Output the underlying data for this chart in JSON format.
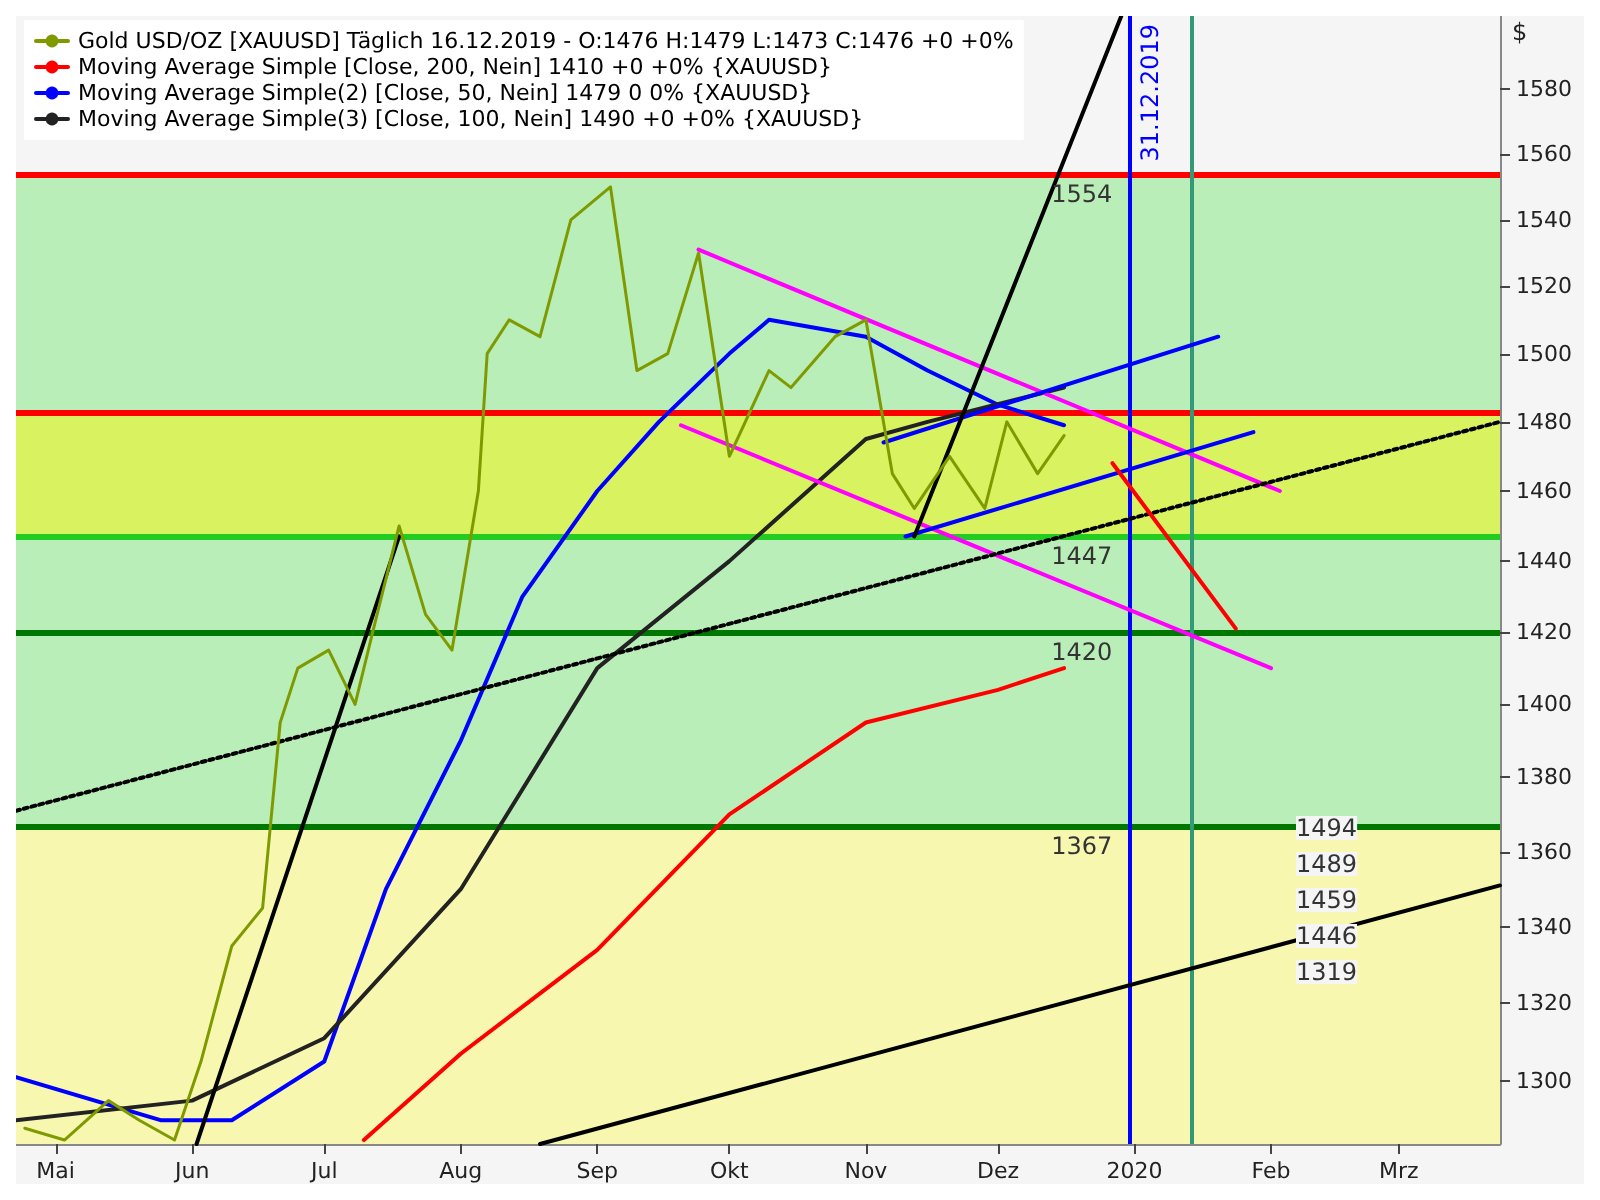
{
  "chart_data": {
    "type": "line",
    "ylabel": "$",
    "log": "y",
    "grid": false,
    "legend": "top left",
    "marker": "none",
    "line_style": "solid",
    "xlim": [
      "2019-04-22",
      "2020-03-24"
    ],
    "xticks": [
      {
        "value": "2019-05-01",
        "label": "Mai"
      },
      {
        "value": "2019-06-01",
        "label": "Jun"
      },
      {
        "value": "2019-07-01",
        "label": "Jul"
      },
      {
        "value": "2019-08-01",
        "label": "Aug"
      },
      {
        "value": "2019-09-01",
        "label": "Sep"
      },
      {
        "value": "2019-10-01",
        "label": "Okt"
      },
      {
        "value": "2019-11-01",
        "label": "Nov"
      },
      {
        "value": "2019-12-01",
        "label": "Dez"
      },
      {
        "value": "2020-01-01",
        "label": "2020"
      },
      {
        "value": "2020-02-01",
        "label": "Feb"
      },
      {
        "value": "2020-03-01",
        "label": "Mrz"
      }
    ],
    "ylim": [
      1284,
      1603
    ],
    "yticks": [
      1300,
      1320,
      1340,
      1360,
      1380,
      1400,
      1420,
      1440,
      1460,
      1480,
      1500,
      1520,
      1540,
      1560,
      1580
    ],
    "series": [
      {
        "name": "Gold USD/OZ [XAUUSD] Täglich 16.12.2019 - O:1476 H:1479 L:1473 C:1476 +0 +0%",
        "color": "#7f9a00",
        "x": [
          "2019-04-24",
          "2019-05-03",
          "2019-05-13",
          "2019-05-20",
          "2019-05-28",
          "2019-06-03",
          "2019-06-10",
          "2019-06-17",
          "2019-06-21",
          "2019-06-25",
          "2019-07-02",
          "2019-07-08",
          "2019-07-12",
          "2019-07-18",
          "2019-07-24",
          "2019-07-30",
          "2019-08-05",
          "2019-08-07",
          "2019-08-12",
          "2019-08-19",
          "2019-08-26",
          "2019-09-04",
          "2019-09-10",
          "2019-09-17",
          "2019-09-24",
          "2019-10-01",
          "2019-10-10",
          "2019-10-15",
          "2019-10-25",
          "2019-11-01",
          "2019-11-07",
          "2019-11-12",
          "2019-11-20",
          "2019-11-28",
          "2019-12-03",
          "2019-12-10",
          "2019-12-16"
        ],
        "values": [
          1288,
          1285,
          1295,
          1290,
          1285,
          1305,
          1335,
          1345,
          1395,
          1410,
          1415,
          1400,
          1420,
          1450,
          1425,
          1415,
          1460,
          1500,
          1510,
          1505,
          1540,
          1550,
          1495,
          1500,
          1530,
          1470,
          1495,
          1490,
          1505,
          1510,
          1465,
          1455,
          1470,
          1455,
          1480,
          1465,
          1476
        ]
      },
      {
        "name": "Moving Average Simple [Close, 200, Nein] 1410 +0 +0% {XAUUSD}",
        "color": "#ff0000",
        "x": [
          "2019-07-10",
          "2019-08-01",
          "2019-09-01",
          "2019-10-01",
          "2019-11-01",
          "2019-12-01",
          "2019-12-16"
        ],
        "values": [
          1285,
          1307,
          1334,
          1370,
          1395,
          1404,
          1410
        ]
      },
      {
        "name": "Moving Average Simple(2) [Close, 50, Nein] 1479 0 0% {XAUUSD}",
        "color": "#0000ff",
        "x": [
          "2019-04-22",
          "2019-05-25",
          "2019-06-10",
          "2019-07-01",
          "2019-07-15",
          "2019-08-01",
          "2019-08-15",
          "2019-09-01",
          "2019-09-15",
          "2019-10-01",
          "2019-10-10",
          "2019-11-01",
          "2019-11-15",
          "2019-12-01",
          "2019-12-16"
        ],
        "values": [
          1301,
          1290,
          1290,
          1305,
          1350,
          1390,
          1430,
          1460,
          1480,
          1500,
          1510,
          1505,
          1495,
          1485,
          1479
        ]
      },
      {
        "name": "Moving Average Simple(3) [Close, 100, Nein] 1490 +0 +0% {XAUUSD}",
        "color": "#222222",
        "x": [
          "2019-04-22",
          "2019-06-01",
          "2019-07-01",
          "2019-08-01",
          "2019-09-01",
          "2019-10-01",
          "2019-11-01",
          "2019-11-15",
          "2019-12-16"
        ],
        "values": [
          1290,
          1295,
          1311,
          1350,
          1410,
          1440,
          1475,
          1480,
          1490
        ]
      },
      {
        "color": "#ff00ff",
        "x": [
          "2019-09-24",
          "2020-02-03"
        ],
        "values": [
          1531,
          1460
        ]
      },
      {
        "color": "#ff00ff",
        "x": [
          "2019-09-20",
          "2020-02-01"
        ],
        "values": [
          1479,
          1410
        ]
      },
      {
        "color": "#0000ff",
        "x": [
          "2019-11-05",
          "2020-01-20"
        ],
        "values": [
          1474,
          1505
        ]
      },
      {
        "color": "#0000ff",
        "x": [
          "2019-11-10",
          "2020-01-28"
        ],
        "values": [
          1447,
          1477
        ]
      },
      {
        "color": "#000000",
        "x": [
          "2019-11-12",
          "2019-12-29"
        ],
        "values": [
          1447,
          1603
        ]
      },
      {
        "color": "#000000",
        "x": [
          "2019-06-02",
          "2019-07-18"
        ],
        "values": [
          1284,
          1447
        ]
      },
      {
        "color": "#000000",
        "line_style": "dotted",
        "x": [
          "2019-04-22",
          "2020-03-24"
        ],
        "values": [
          1371,
          1480
        ]
      },
      {
        "color": "#000000",
        "x": [
          "2019-08-19",
          "2020-03-24"
        ],
        "values": [
          1284,
          1351
        ]
      },
      {
        "color": "#ff0000",
        "x": [
          "2019-12-27",
          "2020-01-24"
        ],
        "values": [
          1468,
          1421
        ]
      }
    ],
    "bands": [
      {
        "axis": "y",
        "from": 1284,
        "to": 1367,
        "color": "#f7f7b0"
      },
      {
        "axis": "y",
        "from": 1367,
        "to": 1554,
        "color": "#b9eeb9"
      },
      {
        "axis": "y",
        "from": 1447,
        "to": 1483,
        "color": "#d9f260"
      }
    ],
    "ref_lines": [
      {
        "axis": "y",
        "value": 1554,
        "color": "#ff0000"
      },
      {
        "axis": "y",
        "value": 1483,
        "color": "#ff0000"
      },
      {
        "axis": "y",
        "value": 1447,
        "color": "#22cc22"
      },
      {
        "axis": "y",
        "value": 1420,
        "color": "#007700"
      },
      {
        "axis": "y",
        "value": 1367,
        "color": "#007700"
      },
      {
        "axis": "x",
        "value": "2019-12-31",
        "label": "31.12.2019",
        "color": "#0000ff"
      },
      {
        "axis": "x",
        "value": "2020-01-14",
        "color": "#339977"
      }
    ],
    "annotations": [
      {
        "text": "1554",
        "x": "2019-12-20",
        "y": 1554
      },
      {
        "text": "1447",
        "x": "2019-12-20",
        "y": 1447
      },
      {
        "text": "1420",
        "x": "2019-12-20",
        "y": 1420
      },
      {
        "text": "1367",
        "x": "2019-12-20",
        "y": 1367
      },
      "1494",
      "1489",
      "1459",
      "1446",
      "1319"
    ]
  }
}
